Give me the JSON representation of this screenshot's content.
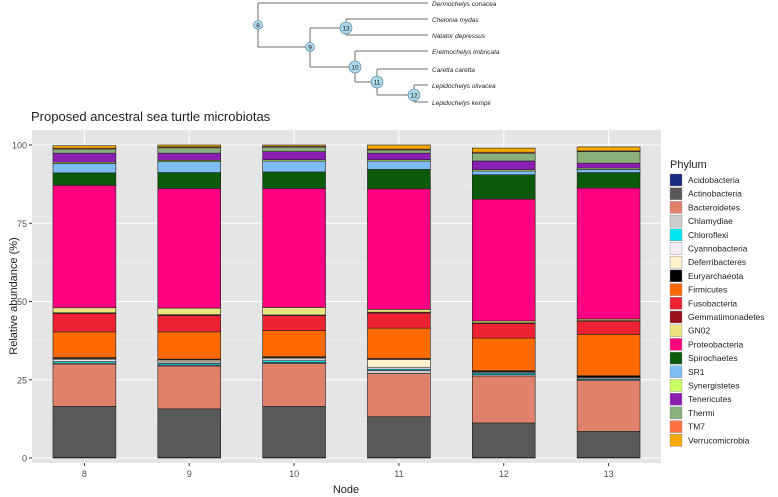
{
  "tree": {
    "tips": [
      {
        "name": "Dermochelys coriacea"
      },
      {
        "name": "Chelonia mydas"
      },
      {
        "name": "Natator depressus"
      },
      {
        "name": "Eretmochelys imbricata"
      },
      {
        "name": "Caretta caretta"
      },
      {
        "name": "Lepidochelys olivacea"
      },
      {
        "name": "Lepidochelys kempii"
      }
    ],
    "nodes": [
      {
        "label": "8"
      },
      {
        "label": "9"
      },
      {
        "label": "10"
      },
      {
        "label": "11"
      },
      {
        "label": "12"
      },
      {
        "label": "13"
      }
    ],
    "node_color": "#aad8ea"
  },
  "chart_data": {
    "type": "bar",
    "stacked": true,
    "title": "Proposed ancestral sea turtle microbiotas",
    "xlabel": "Node",
    "ylabel": "Relative abundance (%)",
    "ylim": [
      0,
      100
    ],
    "yticks": [
      0,
      25,
      50,
      75,
      100
    ],
    "grid": true,
    "background": "#e5e5e5",
    "legend_title": "Phylum",
    "legend_position": "right",
    "categories": [
      "8",
      "9",
      "10",
      "11",
      "12",
      "13"
    ],
    "series": [
      {
        "name": "Acidobacteria",
        "color": "#1a2a80",
        "values": [
          0.2,
          0.2,
          0.2,
          0.2,
          0.2,
          0.2
        ]
      },
      {
        "name": "Actinobacteria",
        "color": "#595959",
        "values": [
          16.3,
          15.5,
          16.3,
          13.0,
          11.0,
          8.3
        ]
      },
      {
        "name": "Bacteroidetes",
        "color": "#e0826b",
        "values": [
          13.5,
          13.7,
          13.7,
          13.8,
          15.0,
          16.2
        ]
      },
      {
        "name": "Chlamydiae",
        "color": "#cccccc",
        "values": [
          0.3,
          0.3,
          0.3,
          1.0,
          0.4,
          0.3
        ]
      },
      {
        "name": "Chloroflexi",
        "color": "#00e5ee",
        "values": [
          0.5,
          0.5,
          0.6,
          0.4,
          0.5,
          0.3
        ]
      },
      {
        "name": "Cyannobacteria",
        "color": "#f5eef8",
        "values": [
          0.6,
          0.5,
          0.6,
          0.6,
          0.3,
          0.4
        ]
      },
      {
        "name": "Deferribacteres",
        "color": "#fff2cc",
        "values": [
          0.4,
          0.6,
          0.4,
          2.5,
          0.2,
          0.2
        ]
      },
      {
        "name": "Euryarchaeota",
        "color": "#000000",
        "values": [
          0.3,
          0.3,
          0.3,
          0.3,
          0.3,
          0.4
        ]
      },
      {
        "name": "Firmicutes",
        "color": "#ff6a00",
        "values": [
          8.2,
          8.7,
          8.3,
          9.7,
          10.4,
          13.2
        ]
      },
      {
        "name": "Fusobacteria",
        "color": "#ee2233",
        "values": [
          5.8,
          5.2,
          4.8,
          4.8,
          4.6,
          4.2
        ]
      },
      {
        "name": "Gemmatimonadetes",
        "color": "#9b111e",
        "values": [
          0.3,
          0.3,
          0.2,
          0.3,
          0.3,
          0.2
        ]
      },
      {
        "name": "GN02",
        "color": "#ece47f",
        "values": [
          1.6,
          2.1,
          2.4,
          0.9,
          0.6,
          0.5
        ]
      },
      {
        "name": "Proteobacteria",
        "color": "#ff0080",
        "values": [
          39.1,
          38.2,
          38.0,
          38.5,
          38.9,
          41.8
        ]
      },
      {
        "name": "Spirochaetes",
        "color": "#0b5a0b",
        "values": [
          4.0,
          5.1,
          5.3,
          6.2,
          7.8,
          5.0
        ]
      },
      {
        "name": "SR1",
        "color": "#7dbdf2",
        "values": [
          3.0,
          3.5,
          3.5,
          2.7,
          1.2,
          1.0
        ]
      },
      {
        "name": "Synergistetes",
        "color": "#ccff66",
        "values": [
          0.4,
          0.4,
          0.4,
          0.4,
          0.4,
          0.4
        ]
      },
      {
        "name": "Tenericutes",
        "color": "#8b1fb3",
        "values": [
          2.9,
          2.3,
          2.6,
          2.1,
          2.8,
          1.6
        ]
      },
      {
        "name": "Thermi",
        "color": "#8bb07c",
        "values": [
          1.3,
          1.7,
          1.4,
          1.0,
          2.5,
          3.7
        ]
      },
      {
        "name": "TM7",
        "color": "#ff7043",
        "values": [
          0.3,
          0.3,
          0.3,
          0.3,
          0.3,
          0.2
        ]
      },
      {
        "name": "Verrucomicrobia",
        "color": "#f5a800",
        "values": [
          0.8,
          0.6,
          0.4,
          1.3,
          1.3,
          1.3
        ]
      }
    ]
  }
}
